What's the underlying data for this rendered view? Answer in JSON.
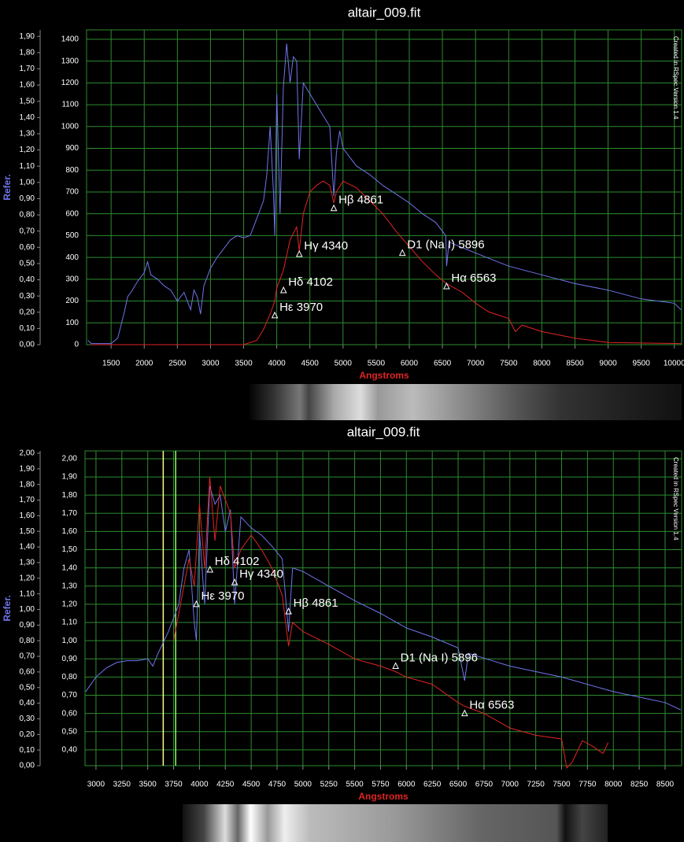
{
  "chart_data": [
    {
      "type": "line",
      "title": "altair_009.fit",
      "xlabel": "Angstroms",
      "ylabel": "Refer.",
      "credit": "Created in RSpec Version 1.4",
      "grid": true,
      "xlim": [
        1130,
        10110
      ],
      "xticks": [
        1500,
        2000,
        2500,
        3000,
        3500,
        4000,
        4500,
        5000,
        5500,
        6000,
        6500,
        7000,
        7500,
        8000,
        8500,
        9000,
        9500,
        10000
      ],
      "ylim": [
        0,
        1443
      ],
      "yticks": [
        0,
        100,
        200,
        300,
        400,
        500,
        600,
        700,
        800,
        900,
        1000,
        1100,
        1200,
        1300,
        1400
      ],
      "y2lim": [
        0,
        1.94
      ],
      "y2ticks": [
        {
          "value": 0,
          "label": "0,00"
        },
        {
          "value": 0.1,
          "label": "0,10"
        },
        {
          "value": 0.2,
          "label": "0,20"
        },
        {
          "value": 0.3,
          "label": "0,30"
        },
        {
          "value": 0.4,
          "label": "0,40"
        },
        {
          "value": 0.5,
          "label": "0,50"
        },
        {
          "value": 0.6,
          "label": "0,60"
        },
        {
          "value": 0.7,
          "label": "0,70"
        },
        {
          "value": 0.8,
          "label": "0,80"
        },
        {
          "value": 0.9,
          "label": "0,90"
        },
        {
          "value": 1.0,
          "label": "1,00"
        },
        {
          "value": 1.1,
          "label": "1,10"
        },
        {
          "value": 1.2,
          "label": "1,20"
        },
        {
          "value": 1.3,
          "label": "1,30"
        },
        {
          "value": 1.4,
          "label": "1,40"
        },
        {
          "value": 1.5,
          "label": "1,50"
        },
        {
          "value": 1.6,
          "label": "1,60"
        },
        {
          "value": 1.7,
          "label": "1,70"
        },
        {
          "value": 1.8,
          "label": "1,80"
        },
        {
          "value": 1.9,
          "label": "1,90"
        }
      ],
      "series": [
        {
          "color": "#7075ea",
          "x": [
            1150,
            1200,
            1500,
            1600,
            1700,
            1750,
            1800,
            1900,
            2000,
            2050,
            2100,
            2200,
            2300,
            2400,
            2500,
            2600,
            2700,
            2750,
            2800,
            2850,
            2900,
            3000,
            3100,
            3200,
            3300,
            3400,
            3500,
            3600,
            3700,
            3800,
            3850,
            3900,
            3950,
            3970,
            4000,
            4050,
            4100,
            4150,
            4200,
            4250,
            4300,
            4340,
            4400,
            4500,
            4600,
            4700,
            4800,
            4861,
            4900,
            4950,
            5000,
            5200,
            5400,
            5600,
            5800,
            6000,
            6200,
            6400,
            6550,
            6563,
            6600,
            7000,
            7500,
            8000,
            8500,
            9000,
            9500,
            10000,
            10100
          ],
          "values": [
            20,
            5,
            5,
            30,
            150,
            220,
            240,
            290,
            330,
            380,
            320,
            300,
            270,
            250,
            200,
            240,
            160,
            250,
            220,
            140,
            270,
            350,
            400,
            440,
            480,
            500,
            490,
            500,
            580,
            660,
            780,
            1000,
            700,
            500,
            1150,
            600,
            1180,
            1380,
            1200,
            1320,
            1300,
            850,
            1200,
            1150,
            1100,
            1050,
            1000,
            680,
            880,
            980,
            900,
            820,
            780,
            730,
            690,
            650,
            600,
            560,
            500,
            360,
            470,
            420,
            360,
            320,
            280,
            250,
            210,
            190,
            160
          ]
        },
        {
          "color": "#e02424",
          "x": [
            1200,
            3500,
            3700,
            3800,
            3900,
            3970,
            4000,
            4100,
            4200,
            4300,
            4340,
            4400,
            4500,
            4600,
            4700,
            4800,
            4861,
            4900,
            5000,
            5200,
            5400,
            5600,
            5800,
            6000,
            6200,
            6400,
            6563,
            6800,
            7000,
            7200,
            7500,
            7600,
            7700,
            8000,
            8500,
            9000,
            10100
          ],
          "values": [
            0,
            0,
            20,
            70,
            140,
            200,
            260,
            340,
            480,
            540,
            430,
            600,
            700,
            730,
            750,
            730,
            650,
            700,
            750,
            720,
            660,
            600,
            520,
            450,
            380,
            320,
            280,
            240,
            190,
            150,
            120,
            60,
            90,
            60,
            30,
            10,
            5
          ]
        }
      ],
      "annotations": [
        {
          "label": "Hε 3970",
          "x": 3970,
          "y": 134
        },
        {
          "label": "Hδ 4102",
          "x": 4102,
          "y": 249
        },
        {
          "label": "Hγ 4340",
          "x": 4340,
          "y": 415
        },
        {
          "label": "Hβ 4861",
          "x": 4861,
          "y": 625
        },
        {
          "label": "D1 (Na I) 5896",
          "x": 5896,
          "y": 420
        },
        {
          "label": "Hα 6563",
          "x": 6563,
          "y": 267
        }
      ]
    },
    {
      "type": "line",
      "title": "altair_009.fit",
      "xlabel": "Angstroms",
      "ylabel": "Refer.",
      "credit": "Created in RSpec Version 1.4",
      "grid": true,
      "xlim": [
        2894,
        8660
      ],
      "xticks": [
        3000,
        3250,
        3500,
        3750,
        4000,
        4250,
        4500,
        4750,
        5000,
        5250,
        5500,
        5750,
        6000,
        6250,
        6500,
        6750,
        7000,
        7250,
        7500,
        7750,
        8000,
        8250,
        8500
      ],
      "ylim": [
        0.313,
        2.043
      ],
      "yticks": [
        {
          "value": 0.4,
          "label": "0,40"
        },
        {
          "value": 0.5,
          "label": "0,50"
        },
        {
          "value": 0.6,
          "label": "0,60"
        },
        {
          "value": 0.7,
          "label": "0,70"
        },
        {
          "value": 0.8,
          "label": "0,80"
        },
        {
          "value": 0.9,
          "label": "0,90"
        },
        {
          "value": 1.0,
          "label": "1,00"
        },
        {
          "value": 1.1,
          "label": "1,10"
        },
        {
          "value": 1.2,
          "label": "1,20"
        },
        {
          "value": 1.3,
          "label": "1,30"
        },
        {
          "value": 1.4,
          "label": "1,40"
        },
        {
          "value": 1.5,
          "label": "1,50"
        },
        {
          "value": 1.6,
          "label": "1,60"
        },
        {
          "value": 1.7,
          "label": "1,70"
        },
        {
          "value": 1.8,
          "label": "1,80"
        },
        {
          "value": 1.9,
          "label": "1,90"
        },
        {
          "value": 2.0,
          "label": "2,00"
        }
      ],
      "y2lim": [
        0,
        2.015
      ],
      "y2ticks": [
        {
          "value": 0,
          "label": "0,00"
        },
        {
          "value": 0.1,
          "label": "0,10"
        },
        {
          "value": 0.2,
          "label": "0,20"
        },
        {
          "value": 0.3,
          "label": "0,30"
        },
        {
          "value": 0.4,
          "label": "0,40"
        },
        {
          "value": 0.5,
          "label": "0,50"
        },
        {
          "value": 0.6,
          "label": "0,60"
        },
        {
          "value": 0.7,
          "label": "0,70"
        },
        {
          "value": 0.8,
          "label": "0,80"
        },
        {
          "value": 0.9,
          "label": "0,90"
        },
        {
          "value": 1.0,
          "label": "1,00"
        },
        {
          "value": 1.1,
          "label": "1,10"
        },
        {
          "value": 1.2,
          "label": "1,20"
        },
        {
          "value": 1.3,
          "label": "1,30"
        },
        {
          "value": 1.4,
          "label": "1,40"
        },
        {
          "value": 1.5,
          "label": "1,50"
        },
        {
          "value": 1.6,
          "label": "1,60"
        },
        {
          "value": 1.7,
          "label": "1,70"
        },
        {
          "value": 1.8,
          "label": "1,80"
        },
        {
          "value": 1.9,
          "label": "1,90"
        },
        {
          "value": 2.0,
          "label": "2,00"
        }
      ],
      "vertical_lines": [
        {
          "x": 3650,
          "color": "#ffff80"
        },
        {
          "x": 3770,
          "color": "#90ff60"
        }
      ],
      "series": [
        {
          "color": "#7075ea",
          "x": [
            2900,
            3000,
            3100,
            3200,
            3300,
            3400,
            3500,
            3550,
            3600,
            3700,
            3800,
            3850,
            3900,
            3950,
            3970,
            4000,
            4050,
            4100,
            4150,
            4200,
            4250,
            4300,
            4340,
            4400,
            4500,
            4600,
            4700,
            4800,
            4861,
            4900,
            5000,
            5250,
            5500,
            5750,
            6000,
            6250,
            6500,
            6563,
            6600,
            7000,
            7500,
            8000,
            8500,
            8650
          ],
          "values": [
            0.72,
            0.8,
            0.85,
            0.88,
            0.89,
            0.89,
            0.9,
            0.86,
            0.93,
            1.05,
            1.2,
            1.4,
            1.5,
            1.1,
            1.0,
            1.6,
            1.2,
            1.85,
            1.75,
            1.8,
            1.6,
            1.72,
            1.2,
            1.68,
            1.62,
            1.58,
            1.52,
            1.45,
            1.05,
            1.4,
            1.38,
            1.3,
            1.22,
            1.15,
            1.07,
            1.02,
            0.96,
            0.78,
            0.93,
            0.86,
            0.8,
            0.72,
            0.66,
            0.62
          ]
        },
        {
          "color": "#e02424",
          "x": [
            3750,
            3800,
            3900,
            3950,
            4000,
            4050,
            4100,
            4150,
            4200,
            4300,
            4340,
            4400,
            4500,
            4600,
            4700,
            4800,
            4861,
            4900,
            5000,
            5250,
            5500,
            5750,
            5896,
            6000,
            6250,
            6500,
            6563,
            6750,
            7000,
            7250,
            7500,
            7550,
            7600,
            7700,
            7800,
            7900,
            7950
          ],
          "values": [
            1.0,
            1.15,
            1.45,
            1.3,
            1.75,
            1.4,
            1.9,
            1.55,
            1.85,
            1.7,
            1.4,
            1.5,
            1.58,
            1.5,
            1.4,
            1.25,
            0.97,
            1.1,
            1.05,
            0.98,
            0.9,
            0.86,
            0.83,
            0.8,
            0.76,
            0.66,
            0.64,
            0.6,
            0.52,
            0.48,
            0.46,
            0.3,
            0.33,
            0.45,
            0.42,
            0.38,
            0.44
          ]
        }
      ],
      "annotations": [
        {
          "label": "Hε 3970",
          "x": 3970,
          "y": 1.2
        },
        {
          "label": "Hδ 4102",
          "x": 4102,
          "y": 1.39
        },
        {
          "label": "Hγ 4340",
          "x": 4340,
          "y": 1.32
        },
        {
          "label": "Hβ 4861",
          "x": 4861,
          "y": 1.16
        },
        {
          "label": "D1 (Na I) 5896",
          "x": 5896,
          "y": 0.86
        },
        {
          "label": "Hα 6563",
          "x": 6563,
          "y": 0.6
        }
      ]
    }
  ]
}
